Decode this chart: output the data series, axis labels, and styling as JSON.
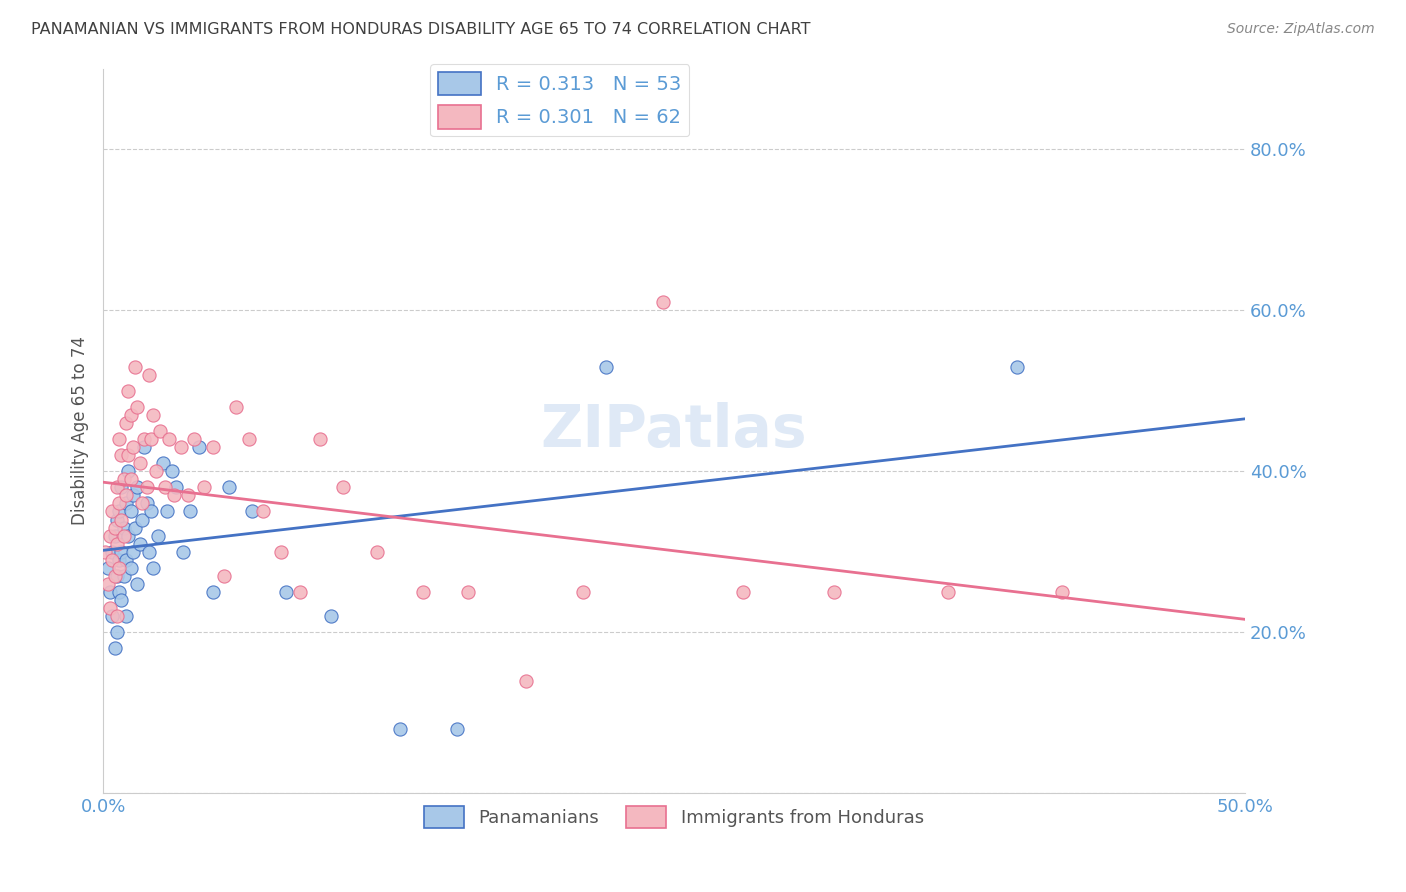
{
  "title": "PANAMANIAN VS IMMIGRANTS FROM HONDURAS DISABILITY AGE 65 TO 74 CORRELATION CHART",
  "source": "Source: ZipAtlas.com",
  "ylabel": "Disability Age 65 to 74",
  "xlim": [
    0.0,
    0.5
  ],
  "ylim": [
    0.0,
    0.9
  ],
  "xticks": [
    0.0,
    0.1,
    0.2,
    0.3,
    0.4,
    0.5
  ],
  "xticklabels": [
    "0.0%",
    "",
    "",
    "",
    "",
    "50.0%"
  ],
  "yticks": [
    0.0,
    0.2,
    0.4,
    0.6,
    0.8
  ],
  "yticklabels": [
    "",
    "20.0%",
    "40.0%",
    "60.0%",
    "80.0%"
  ],
  "blue_R": "0.313",
  "blue_N": "53",
  "pink_R": "0.301",
  "pink_N": "62",
  "blue_color": "#A8C8E8",
  "pink_color": "#F4B8C0",
  "blue_line_color": "#4472C4",
  "pink_line_color": "#E87090",
  "legend_label_blue": "Panamanians",
  "legend_label_pink": "Immigrants from Honduras",
  "title_color": "#404040",
  "axis_color": "#5B9BD5",
  "blue_scatter_x": [
    0.002,
    0.003,
    0.004,
    0.004,
    0.005,
    0.005,
    0.006,
    0.006,
    0.006,
    0.007,
    0.007,
    0.007,
    0.008,
    0.008,
    0.008,
    0.009,
    0.009,
    0.01,
    0.01,
    0.01,
    0.011,
    0.011,
    0.012,
    0.012,
    0.013,
    0.013,
    0.014,
    0.015,
    0.015,
    0.016,
    0.017,
    0.018,
    0.019,
    0.02,
    0.021,
    0.022,
    0.024,
    0.026,
    0.028,
    0.03,
    0.032,
    0.035,
    0.038,
    0.042,
    0.048,
    0.055,
    0.065,
    0.08,
    0.1,
    0.13,
    0.155,
    0.22,
    0.4
  ],
  "blue_scatter_y": [
    0.28,
    0.25,
    0.22,
    0.3,
    0.18,
    0.32,
    0.27,
    0.34,
    0.2,
    0.29,
    0.35,
    0.25,
    0.38,
    0.3,
    0.24,
    0.33,
    0.27,
    0.36,
    0.29,
    0.22,
    0.4,
    0.32,
    0.35,
    0.28,
    0.37,
    0.3,
    0.33,
    0.38,
    0.26,
    0.31,
    0.34,
    0.43,
    0.36,
    0.3,
    0.35,
    0.28,
    0.32,
    0.41,
    0.35,
    0.4,
    0.38,
    0.3,
    0.35,
    0.43,
    0.25,
    0.38,
    0.35,
    0.25,
    0.22,
    0.08,
    0.08,
    0.53,
    0.53
  ],
  "pink_scatter_x": [
    0.001,
    0.002,
    0.003,
    0.003,
    0.004,
    0.004,
    0.005,
    0.005,
    0.006,
    0.006,
    0.006,
    0.007,
    0.007,
    0.007,
    0.008,
    0.008,
    0.009,
    0.009,
    0.01,
    0.01,
    0.011,
    0.011,
    0.012,
    0.012,
    0.013,
    0.014,
    0.015,
    0.016,
    0.017,
    0.018,
    0.019,
    0.02,
    0.021,
    0.022,
    0.023,
    0.025,
    0.027,
    0.029,
    0.031,
    0.034,
    0.037,
    0.04,
    0.044,
    0.048,
    0.053,
    0.058,
    0.064,
    0.07,
    0.078,
    0.086,
    0.095,
    0.105,
    0.12,
    0.14,
    0.16,
    0.185,
    0.21,
    0.245,
    0.28,
    0.32,
    0.37,
    0.42
  ],
  "pink_scatter_y": [
    0.3,
    0.26,
    0.23,
    0.32,
    0.29,
    0.35,
    0.27,
    0.33,
    0.22,
    0.38,
    0.31,
    0.44,
    0.36,
    0.28,
    0.42,
    0.34,
    0.39,
    0.32,
    0.46,
    0.37,
    0.5,
    0.42,
    0.47,
    0.39,
    0.43,
    0.53,
    0.48,
    0.41,
    0.36,
    0.44,
    0.38,
    0.52,
    0.44,
    0.47,
    0.4,
    0.45,
    0.38,
    0.44,
    0.37,
    0.43,
    0.37,
    0.44,
    0.38,
    0.43,
    0.27,
    0.48,
    0.44,
    0.35,
    0.3,
    0.25,
    0.44,
    0.38,
    0.3,
    0.25,
    0.25,
    0.14,
    0.25,
    0.61,
    0.25,
    0.25,
    0.25,
    0.25
  ]
}
